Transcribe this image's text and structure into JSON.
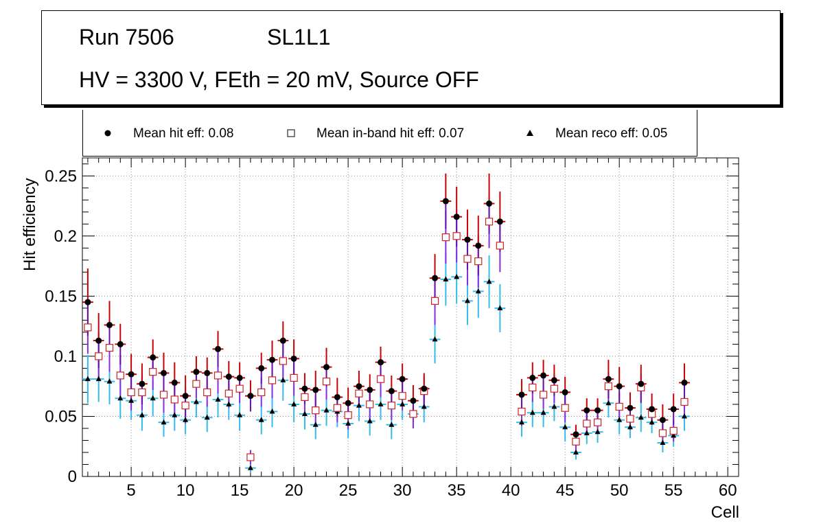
{
  "header": {
    "run_label": "Run 7506",
    "sl_label": "SL1L1",
    "conditions": "HV = 3300 V, FEth = 20 mV, Source OFF"
  },
  "legend": {
    "hit": "Mean hit  eff: 0.08",
    "inband": "Mean in-band hit eff: 0.07",
    "reco": "Mean reco eff: 0.05"
  },
  "colors": {
    "hit_marker": "#000000",
    "hit_err_upper": "#cc0000",
    "hit_err_lower": "#6a0dad",
    "inband_marker_edge": "#cc2222",
    "inband_err": "#8a2be2",
    "reco_marker": "#000000",
    "reco_err": "#33bbee",
    "grid": "#888888"
  },
  "chart_data": {
    "type": "scatter",
    "xlabel": "Cell",
    "ylabel": "Hit efficiency",
    "xlim": [
      0.5,
      61
    ],
    "ylim": [
      0,
      0.265
    ],
    "xticks": [
      5,
      10,
      15,
      20,
      25,
      30,
      35,
      40,
      45,
      50,
      55,
      60
    ],
    "xtick_labels": [
      "5",
      "10",
      "15",
      "20",
      "25",
      "30",
      "35",
      "40",
      "45",
      "50",
      "55",
      "60"
    ],
    "yticks": [
      0,
      0.05,
      0.1,
      0.15,
      0.2,
      0.25
    ],
    "ytick_labels": [
      "0",
      "0.05",
      "0.1",
      "0.15",
      "0.2",
      "0.25"
    ],
    "grid": true,
    "series": [
      {
        "name": "Mean hit  eff: 0.08",
        "x": [
          1,
          2,
          3,
          4,
          5,
          6,
          7,
          8,
          9,
          10,
          11,
          12,
          13,
          14,
          15,
          16,
          17,
          18,
          19,
          20,
          21,
          22,
          23,
          24,
          25,
          26,
          27,
          28,
          29,
          30,
          31,
          32,
          33,
          34,
          35,
          36,
          37,
          38,
          39,
          41,
          42,
          43,
          44,
          45,
          46,
          47,
          48,
          49,
          50,
          51,
          52,
          53,
          54,
          55,
          56
        ],
        "y": [
          0.145,
          0.113,
          0.126,
          0.11,
          0.085,
          0.077,
          0.099,
          0.086,
          0.078,
          0.067,
          0.087,
          0.086,
          0.106,
          0.083,
          0.082,
          0.067,
          0.09,
          0.097,
          0.113,
          0.098,
          0.073,
          0.072,
          0.091,
          0.066,
          0.061,
          0.075,
          0.072,
          0.095,
          0.071,
          0.081,
          0.063,
          0.073,
          0.165,
          0.229,
          0.216,
          0.197,
          0.192,
          0.227,
          0.212,
          0.068,
          0.082,
          0.084,
          0.08,
          0.07,
          0.035,
          0.055,
          0.055,
          0.081,
          0.075,
          0.057,
          0.077,
          0.056,
          0.047,
          0.056,
          0.078
        ],
        "err": [
          0.028,
          0.023,
          0.02,
          0.017,
          0.017,
          0.017,
          0.015,
          0.017,
          0.017,
          0.017,
          0.013,
          0.013,
          0.015,
          0.013,
          0.013,
          0.013,
          0.013,
          0.016,
          0.016,
          0.016,
          0.013,
          0.016,
          0.016,
          0.016,
          0.013,
          0.013,
          0.013,
          0.013,
          0.013,
          0.013,
          0.013,
          0.013,
          0.02,
          0.023,
          0.025,
          0.025,
          0.025,
          0.025,
          0.025,
          0.013,
          0.013,
          0.013,
          0.013,
          0.013,
          0.008,
          0.01,
          0.01,
          0.016,
          0.016,
          0.013,
          0.016,
          0.013,
          0.013,
          0.013,
          0.016
        ]
      },
      {
        "name": "Mean in-band hit eff: 0.07",
        "x": [
          1,
          2,
          3,
          4,
          5,
          6,
          7,
          8,
          9,
          10,
          11,
          12,
          13,
          14,
          15,
          16,
          17,
          18,
          19,
          20,
          21,
          22,
          23,
          24,
          25,
          26,
          27,
          28,
          29,
          30,
          31,
          32,
          33,
          34,
          35,
          36,
          37,
          38,
          39,
          41,
          42,
          43,
          44,
          45,
          46,
          47,
          48,
          49,
          50,
          51,
          52,
          53,
          54,
          55,
          56
        ],
        "y": [
          0.124,
          0.1,
          0.107,
          0.084,
          0.07,
          0.07,
          0.087,
          0.068,
          0.064,
          0.059,
          0.077,
          0.07,
          0.084,
          0.069,
          0.073,
          0.016,
          0.07,
          0.08,
          0.096,
          0.082,
          0.066,
          0.055,
          0.079,
          0.057,
          0.051,
          0.069,
          0.06,
          0.081,
          0.059,
          0.067,
          0.052,
          0.071,
          0.146,
          0.199,
          0.2,
          0.181,
          0.179,
          0.212,
          0.192,
          0.054,
          0.074,
          0.068,
          0.073,
          0.057,
          0.029,
          0.044,
          0.045,
          0.075,
          0.058,
          0.048,
          0.074,
          0.052,
          0.036,
          0.038,
          0.062
        ],
        "err": [
          0.022,
          0.02,
          0.02,
          0.017,
          0.015,
          0.015,
          0.015,
          0.015,
          0.015,
          0.015,
          0.012,
          0.012,
          0.015,
          0.012,
          0.012,
          0.006,
          0.012,
          0.015,
          0.015,
          0.015,
          0.012,
          0.012,
          0.015,
          0.012,
          0.012,
          0.012,
          0.012,
          0.015,
          0.012,
          0.012,
          0.012,
          0.012,
          0.02,
          0.022,
          0.022,
          0.022,
          0.022,
          0.022,
          0.022,
          0.012,
          0.012,
          0.012,
          0.012,
          0.012,
          0.007,
          0.009,
          0.009,
          0.012,
          0.012,
          0.009,
          0.012,
          0.009,
          0.009,
          0.009,
          0.012
        ]
      },
      {
        "name": "Mean reco eff: 0.05",
        "x": [
          1,
          2,
          3,
          4,
          5,
          6,
          7,
          8,
          9,
          10,
          11,
          12,
          13,
          14,
          15,
          16,
          17,
          18,
          19,
          20,
          21,
          22,
          23,
          24,
          25,
          26,
          27,
          28,
          29,
          30,
          31,
          32,
          33,
          34,
          35,
          36,
          37,
          38,
          39,
          41,
          42,
          43,
          44,
          45,
          46,
          47,
          48,
          49,
          50,
          51,
          52,
          53,
          54,
          55,
          56
        ],
        "y": [
          0.081,
          0.081,
          0.079,
          0.065,
          0.063,
          0.051,
          0.065,
          0.045,
          0.051,
          0.047,
          0.062,
          0.049,
          0.064,
          0.06,
          0.051,
          0.007,
          0.047,
          0.054,
          0.08,
          0.06,
          0.052,
          0.043,
          0.055,
          0.054,
          0.044,
          0.059,
          0.046,
          0.06,
          0.043,
          0.06,
          0.052,
          0.058,
          0.114,
          0.164,
          0.166,
          0.146,
          0.154,
          0.162,
          0.14,
          0.045,
          0.053,
          0.053,
          0.058,
          0.041,
          0.02,
          0.036,
          0.037,
          0.061,
          0.047,
          0.041,
          0.049,
          0.045,
          0.028,
          0.034,
          0.05
        ],
        "err": [
          0.02,
          0.019,
          0.019,
          0.017,
          0.016,
          0.013,
          0.015,
          0.012,
          0.013,
          0.012,
          0.013,
          0.012,
          0.015,
          0.013,
          0.013,
          0.004,
          0.012,
          0.013,
          0.017,
          0.015,
          0.013,
          0.012,
          0.013,
          0.013,
          0.012,
          0.013,
          0.012,
          0.013,
          0.012,
          0.013,
          0.012,
          0.013,
          0.02,
          0.022,
          0.022,
          0.02,
          0.022,
          0.022,
          0.02,
          0.012,
          0.012,
          0.012,
          0.012,
          0.012,
          0.006,
          0.009,
          0.009,
          0.012,
          0.012,
          0.009,
          0.012,
          0.009,
          0.008,
          0.009,
          0.012
        ]
      }
    ]
  }
}
